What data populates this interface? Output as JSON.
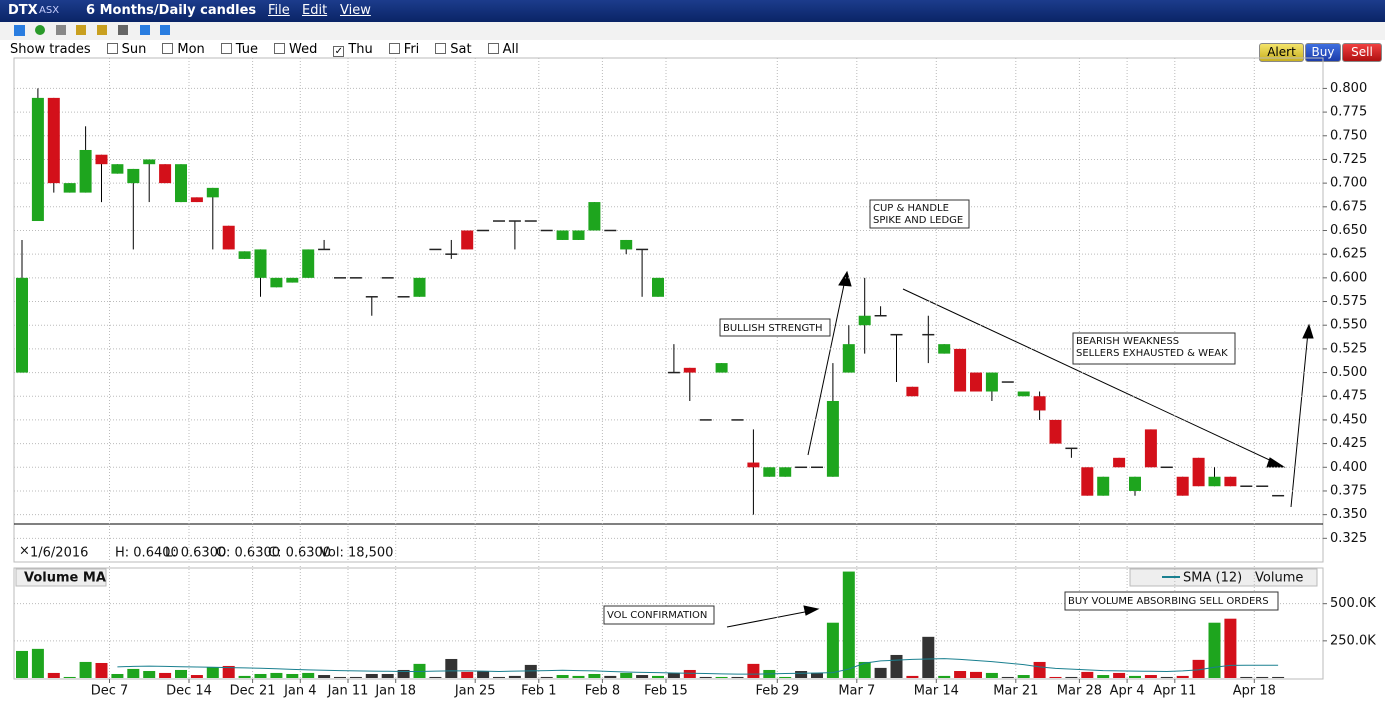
{
  "window": {
    "symbol": "DTX",
    "exchange": "ASX",
    "period": "6 Months/Daily candles",
    "menu": [
      "File",
      "Edit",
      "View"
    ],
    "buttons": [
      "Alert",
      "Buy",
      "Sell"
    ],
    "show_trades": {
      "label": "Show trades",
      "days": [
        "Sun",
        "Mon",
        "Tue",
        "Wed",
        "Thu",
        "Fri",
        "Sat",
        "All"
      ],
      "checked": "Thu"
    },
    "info": [
      "1/6/2016",
      "H: 0.6400",
      "L: 0.6300",
      "O: 0.6300",
      "C: 0.6300",
      "Vol: 18,500"
    ],
    "volume_panel": "Volume MA"
  },
  "chart_data": [
    {
      "type": "candlestick",
      "colors": {
        "up": "#1ea51e",
        "down": "#d3101a",
        "flat": "#222222"
      },
      "categories": [
        null,
        null,
        null,
        null,
        null,
        "Dec 7",
        null,
        null,
        null,
        null,
        "Dec 14",
        null,
        null,
        null,
        "Dec 21",
        null,
        null,
        "Jan 4",
        null,
        null,
        "Jan 11",
        null,
        null,
        "Jan 18",
        null,
        null,
        null,
        null,
        "Jan 25",
        null,
        null,
        null,
        "Feb 1",
        null,
        null,
        null,
        "Feb 8",
        null,
        null,
        null,
        "Feb 15",
        null,
        null,
        null,
        null,
        null,
        null,
        "Feb 29",
        null,
        null,
        null,
        null,
        "Mar 7",
        null,
        null,
        null,
        null,
        "Mar 14",
        null,
        null,
        null,
        null,
        "Mar 21",
        null,
        null,
        null,
        "Mar 28",
        null,
        null,
        "Apr 4",
        null,
        null,
        "Apr 11",
        null,
        null,
        null,
        null,
        "Apr 18",
        null,
        null
      ],
      "open": [
        0.5,
        0.66,
        0.79,
        0.69,
        0.69,
        0.73,
        0.71,
        0.7,
        0.72,
        0.72,
        0.68,
        0.685,
        0.685,
        0.655,
        0.62,
        0.6,
        0.59,
        0.595,
        0.6,
        0.63,
        0.6,
        0.6,
        0.58,
        0.6,
        0.58,
        0.58,
        0.63,
        0.625,
        0.65,
        0.65,
        0.66,
        0.66,
        0.66,
        0.65,
        0.64,
        0.64,
        0.65,
        0.65,
        0.63,
        0.63,
        0.58,
        0.5,
        0.505,
        0.45,
        0.5,
        0.45,
        0.405,
        0.39,
        0.39,
        0.4,
        0.4,
        0.39,
        0.5,
        0.55,
        0.56,
        0.54,
        0.485,
        0.54,
        0.52,
        0.525,
        0.5,
        0.48,
        0.49,
        0.475,
        0.475,
        0.45,
        0.42,
        0.4,
        0.37,
        0.41,
        0.375,
        0.44,
        0.4,
        0.39,
        0.41,
        0.38,
        0.39,
        0.38,
        0.38,
        0.37
      ],
      "high": [
        0.64,
        0.8,
        0.79,
        0.7,
        0.76,
        0.73,
        0.72,
        0.715,
        0.725,
        0.72,
        0.72,
        0.685,
        0.695,
        0.655,
        0.628,
        0.63,
        0.6,
        0.6,
        0.63,
        0.64,
        0.6,
        0.6,
        0.58,
        0.6,
        0.58,
        0.6,
        0.63,
        0.64,
        0.65,
        0.65,
        0.66,
        0.66,
        0.66,
        0.65,
        0.65,
        0.65,
        0.68,
        0.65,
        0.64,
        0.63,
        0.6,
        0.53,
        0.505,
        0.45,
        0.51,
        0.45,
        0.44,
        0.4,
        0.4,
        0.4,
        0.4,
        0.51,
        0.55,
        0.6,
        0.57,
        0.54,
        0.485,
        0.56,
        0.53,
        0.525,
        0.5,
        0.5,
        0.49,
        0.48,
        0.48,
        0.45,
        0.42,
        0.4,
        0.39,
        0.41,
        0.39,
        0.44,
        0.4,
        0.39,
        0.41,
        0.4,
        0.39,
        0.38,
        0.38,
        0.37
      ],
      "low": [
        0.5,
        0.66,
        0.69,
        0.69,
        0.69,
        0.68,
        0.71,
        0.63,
        0.68,
        0.7,
        0.68,
        0.68,
        0.63,
        0.63,
        0.62,
        0.58,
        0.59,
        0.595,
        0.6,
        0.63,
        0.6,
        0.6,
        0.56,
        0.6,
        0.58,
        0.58,
        0.63,
        0.62,
        0.63,
        0.65,
        0.66,
        0.63,
        0.66,
        0.65,
        0.64,
        0.64,
        0.65,
        0.65,
        0.625,
        0.58,
        0.58,
        0.5,
        0.47,
        0.45,
        0.5,
        0.45,
        0.35,
        0.39,
        0.39,
        0.4,
        0.4,
        0.39,
        0.5,
        0.52,
        0.56,
        0.49,
        0.475,
        0.51,
        0.52,
        0.48,
        0.48,
        0.47,
        0.49,
        0.475,
        0.45,
        0.425,
        0.41,
        0.37,
        0.37,
        0.4,
        0.37,
        0.4,
        0.4,
        0.37,
        0.38,
        0.38,
        0.38,
        0.38,
        0.38,
        0.37
      ],
      "close": [
        0.6,
        0.79,
        0.7,
        0.7,
        0.735,
        0.72,
        0.72,
        0.715,
        0.725,
        0.7,
        0.72,
        0.68,
        0.695,
        0.63,
        0.628,
        0.63,
        0.6,
        0.6,
        0.63,
        0.63,
        0.6,
        0.6,
        0.58,
        0.6,
        0.58,
        0.6,
        0.63,
        0.625,
        0.63,
        0.65,
        0.66,
        0.66,
        0.66,
        0.65,
        0.65,
        0.65,
        0.68,
        0.65,
        0.64,
        0.63,
        0.6,
        0.5,
        0.5,
        0.45,
        0.51,
        0.45,
        0.4,
        0.4,
        0.4,
        0.4,
        0.4,
        0.47,
        0.53,
        0.56,
        0.56,
        0.54,
        0.475,
        0.54,
        0.53,
        0.48,
        0.48,
        0.5,
        0.49,
        0.48,
        0.46,
        0.425,
        0.42,
        0.37,
        0.39,
        0.4,
        0.39,
        0.4,
        0.4,
        0.37,
        0.38,
        0.39,
        0.38,
        0.38,
        0.38,
        0.37
      ],
      "ylim": [
        0.3,
        0.83
      ],
      "yticks": [
        {
          "value": 0.8,
          "label": "0.800"
        },
        {
          "value": 0.775,
          "label": "0.775"
        },
        {
          "value": 0.75,
          "label": "0.750"
        },
        {
          "value": 0.725,
          "label": "0.725"
        },
        {
          "value": 0.7,
          "label": "0.700"
        },
        {
          "value": 0.675,
          "label": "0.675"
        },
        {
          "value": 0.65,
          "label": "0.650"
        },
        {
          "value": 0.625,
          "label": "0.625"
        },
        {
          "value": 0.6,
          "label": "0.600"
        },
        {
          "value": 0.575,
          "label": "0.575"
        },
        {
          "value": 0.55,
          "label": "0.550"
        },
        {
          "value": 0.525,
          "label": "0.525"
        },
        {
          "value": 0.5,
          "label": "0.500"
        },
        {
          "value": 0.475,
          "label": "0.475"
        },
        {
          "value": 0.45,
          "label": "0.450"
        },
        {
          "value": 0.425,
          "label": "0.425"
        },
        {
          "value": 0.4,
          "label": "0.400"
        },
        {
          "value": 0.375,
          "label": "0.375"
        },
        {
          "value": 0.35,
          "label": "0.350"
        },
        {
          "value": 0.325,
          "label": "0.325"
        }
      ],
      "grid": true,
      "annotations": [
        [
          "CUP & HANDLE",
          "SPIKE AND LEDGE"
        ],
        [
          "BULLISH STRENGTH"
        ],
        [
          "BEARISH WEAKNESS",
          "SELLERS EXHAUSTED & WEAK"
        ]
      ]
    },
    {
      "type": "volume",
      "colors": {
        "up": "#1ea51e",
        "down": "#d3101a",
        "flat": "#333333"
      },
      "series": [
        {
          "name": "SMA (12)",
          "color": "#1a8090",
          "values": [
            null,
            null,
            null,
            null,
            null,
            null,
            75000,
            78000,
            80000,
            78000,
            76000,
            74000,
            72000,
            70000,
            68000,
            66000,
            62000,
            58000,
            55000,
            52000,
            50000,
            48000,
            46000,
            45000,
            44000,
            44000,
            46000,
            48000,
            48000,
            46000,
            44000,
            46000,
            48000,
            50000,
            52000,
            50000,
            48000,
            44000,
            40000,
            38000,
            36000,
            34000,
            32000,
            30000,
            28000,
            26000,
            26000,
            28000,
            30000,
            32000,
            34000,
            36000,
            60000,
            100000,
            115000,
            120000,
            125000,
            128000,
            130000,
            125000,
            118000,
            110000,
            100000,
            90000,
            75000,
            65000,
            60000,
            55000,
            50000,
            48000,
            46000,
            45000,
            44000,
            48000,
            55000,
            72000,
            85000,
            86000,
            86000,
            86000
          ]
        },
        {
          "name": "Volume",
          "values": [
            182000,
            196000,
            34000,
            7000,
            108000,
            101000,
            27000,
            61000,
            47000,
            34000,
            54000,
            20000,
            74000,
            81000,
            14000,
            27000,
            34000,
            27000,
            34000,
            20000,
            7000,
            7000,
            27000,
            27000,
            54000,
            95000,
            7000,
            128000,
            41000,
            47000,
            7000,
            14000,
            88000,
            7000,
            20000,
            14000,
            27000,
            14000,
            34000,
            20000,
            14000,
            34000,
            54000,
            7000,
            7000,
            7000,
            95000,
            54000,
            7000,
            47000,
            34000,
            372000,
            716000,
            108000,
            68000,
            155000,
            14000,
            277000,
            14000,
            47000,
            41000,
            34000,
            7000,
            20000,
            108000,
            7000,
            7000,
            41000,
            20000,
            34000,
            14000,
            20000,
            7000,
            14000,
            122000,
            372000,
            399000,
            7000,
            7000,
            7000
          ]
        }
      ],
      "ylim": [
        0,
        740000
      ],
      "yticks": [
        {
          "value": 250000,
          "label": "250.0K"
        },
        {
          "value": 500000,
          "label": "500.0K"
        }
      ],
      "grid": true,
      "annotations": [
        [
          "VOL CONFIRMATION"
        ],
        [
          "BUY VOLUME ABSORBING SELL ORDERS"
        ]
      ]
    }
  ]
}
